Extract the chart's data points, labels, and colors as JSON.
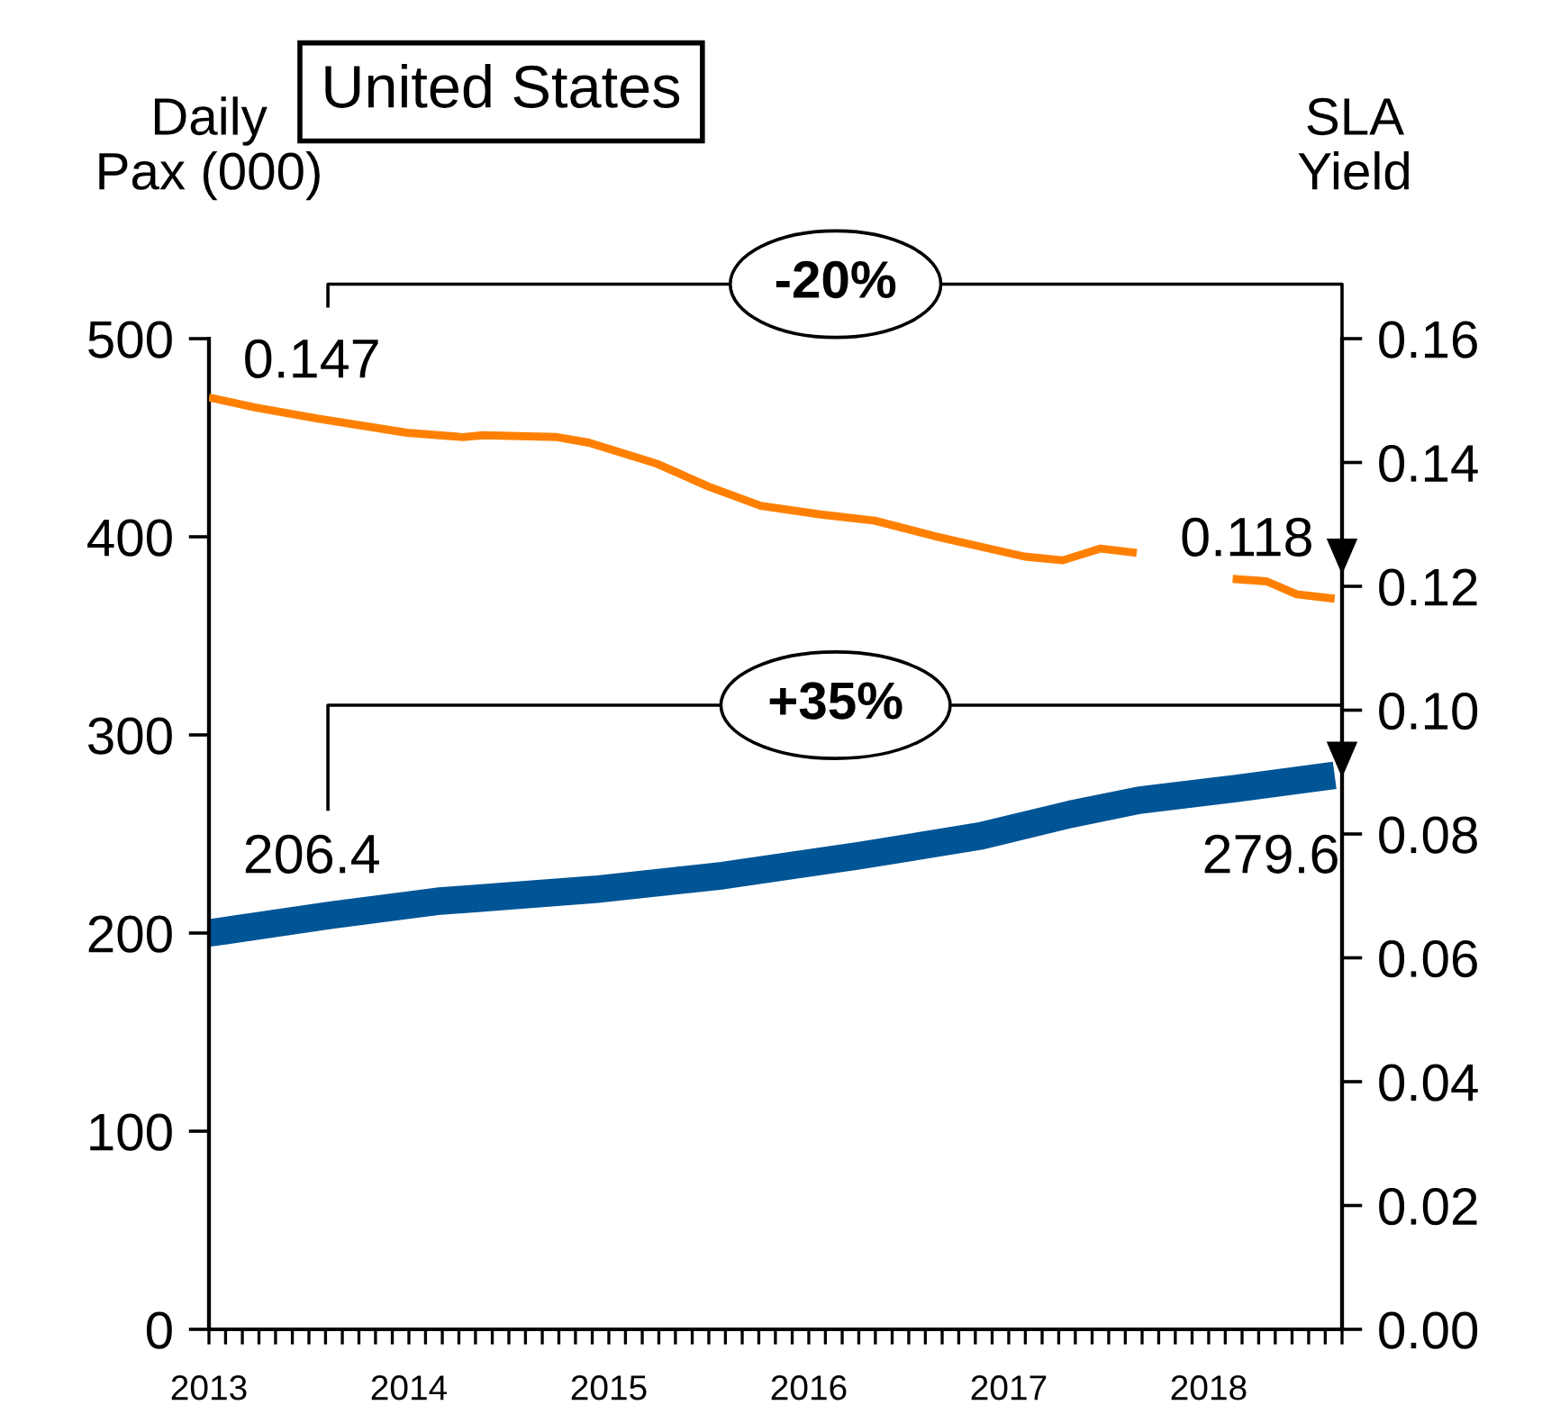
{
  "chart_data": {
    "type": "line",
    "title": "United States",
    "ylabel": "Daily\nPax (000)",
    "y2label": "SLA\nYield",
    "xlim": [
      2013,
      2018.667
    ],
    "ylim": [
      0,
      500
    ],
    "yticks": [
      0,
      100,
      200,
      300,
      400,
      500
    ],
    "y2lim": [
      0,
      0.16
    ],
    "y2ticks": [
      {
        "value": 0,
        "label": "0.00"
      },
      {
        "value": 0.02,
        "label": "0.02"
      },
      {
        "value": 0.04,
        "label": "0.04"
      },
      {
        "value": 0.06,
        "label": "0.06"
      },
      {
        "value": 0.08,
        "label": "0.08"
      },
      {
        "value": 0.1,
        "label": "0.10"
      },
      {
        "value": 0.12,
        "label": "0.12"
      },
      {
        "value": 0.14,
        "label": "0.14"
      },
      {
        "value": 0.16,
        "label": "0.16"
      }
    ],
    "xticks": [
      2013,
      {
        "value": 2013.083,
        "label": null
      },
      {
        "value": 2013.167,
        "label": null
      },
      {
        "value": 2013.25,
        "label": null
      },
      {
        "value": 2013.333,
        "label": null
      },
      {
        "value": 2013.417,
        "label": null
      },
      {
        "value": 2013.5,
        "label": null
      },
      {
        "value": 2013.583,
        "label": null
      },
      {
        "value": 2013.667,
        "label": null
      },
      {
        "value": 2013.75,
        "label": null
      },
      {
        "value": 2013.833,
        "label": null
      },
      {
        "value": 2013.917,
        "label": null
      },
      2014,
      {
        "value": 2014.083,
        "label": null
      },
      {
        "value": 2014.167,
        "label": null
      },
      {
        "value": 2014.25,
        "label": null
      },
      {
        "value": 2014.333,
        "label": null
      },
      {
        "value": 2014.417,
        "label": null
      },
      {
        "value": 2014.5,
        "label": null
      },
      {
        "value": 2014.583,
        "label": null
      },
      {
        "value": 2014.667,
        "label": null
      },
      {
        "value": 2014.75,
        "label": null
      },
      {
        "value": 2014.833,
        "label": null
      },
      {
        "value": 2014.917,
        "label": null
      },
      2015,
      {
        "value": 2015.083,
        "label": null
      },
      {
        "value": 2015.167,
        "label": null
      },
      {
        "value": 2015.25,
        "label": null
      },
      {
        "value": 2015.333,
        "label": null
      },
      {
        "value": 2015.417,
        "label": null
      },
      {
        "value": 2015.5,
        "label": null
      },
      {
        "value": 2015.583,
        "label": null
      },
      {
        "value": 2015.667,
        "label": null
      },
      {
        "value": 2015.75,
        "label": null
      },
      {
        "value": 2015.833,
        "label": null
      },
      {
        "value": 2015.917,
        "label": null
      },
      2016,
      {
        "value": 2016.083,
        "label": null
      },
      {
        "value": 2016.167,
        "label": null
      },
      {
        "value": 2016.25,
        "label": null
      },
      {
        "value": 2016.333,
        "label": null
      },
      {
        "value": 2016.417,
        "label": null
      },
      {
        "value": 2016.5,
        "label": null
      },
      {
        "value": 2016.583,
        "label": null
      },
      {
        "value": 2016.667,
        "label": null
      },
      {
        "value": 2016.75,
        "label": null
      },
      {
        "value": 2016.833,
        "label": null
      },
      {
        "value": 2016.917,
        "label": null
      },
      2017,
      {
        "value": 2017.083,
        "label": null
      },
      {
        "value": 2017.167,
        "label": null
      },
      {
        "value": 2017.25,
        "label": null
      },
      {
        "value": 2017.333,
        "label": null
      },
      {
        "value": 2017.417,
        "label": null
      },
      {
        "value": 2017.5,
        "label": null
      },
      {
        "value": 2017.583,
        "label": null
      },
      {
        "value": 2017.667,
        "label": null
      },
      {
        "value": 2017.75,
        "label": null
      },
      {
        "value": 2017.833,
        "label": null
      },
      {
        "value": 2017.917,
        "label": null
      },
      2018,
      {
        "value": 2018.083,
        "label": null
      },
      {
        "value": 2018.167,
        "label": null
      },
      {
        "value": 2018.25,
        "label": null
      },
      {
        "value": 2018.333,
        "label": null
      },
      {
        "value": 2018.417,
        "label": null
      },
      {
        "value": 2018.5,
        "label": null
      },
      {
        "value": 2018.583,
        "label": null
      },
      {
        "value": 2018.667,
        "label": null
      }
    ],
    "series": [
      {
        "color": "#ff8000",
        "axis": "y2",
        "x": [
          2013.0,
          2013.23,
          2013.54,
          2013.99,
          2014.27,
          2014.37,
          2014.74,
          2014.9,
          2015.24,
          2015.5,
          2015.76,
          2016.06,
          2016.33,
          2016.63,
          2016.86,
          2017.08,
          2017.27,
          2017.46,
          2017.64,
          2017.9,
          2018.12,
          2018.29,
          2018.44,
          2018.63
        ],
        "values": [
          0.1505,
          0.1489,
          0.1471,
          0.1448,
          0.1441,
          0.1444,
          0.1441,
          0.1432,
          0.1398,
          0.1361,
          0.133,
          0.1316,
          0.1306,
          0.1281,
          0.1264,
          0.1248,
          0.1242,
          0.1261,
          0.1254,
          null,
          0.1212,
          0.1208,
          0.1187,
          0.118
        ]
      },
      {
        "color": "#005596",
        "x": [
          2013.0,
          2013.61,
          2014.14,
          2014.93,
          2015.57,
          2016.25,
          2016.86,
          2017.31,
          2017.65,
          2018.14,
          2018.63
        ],
        "values": [
          200,
          209,
          216,
          222,
          229,
          239,
          249,
          260,
          267,
          273,
          279.6
        ]
      }
    ],
    "annotations": [
      "0.147",
      "0.118",
      "206.4",
      "279.6",
      "-20%",
      "+35%"
    ],
    "grid": false,
    "legend": false,
    "marker": "none",
    "line_style": "solid"
  }
}
